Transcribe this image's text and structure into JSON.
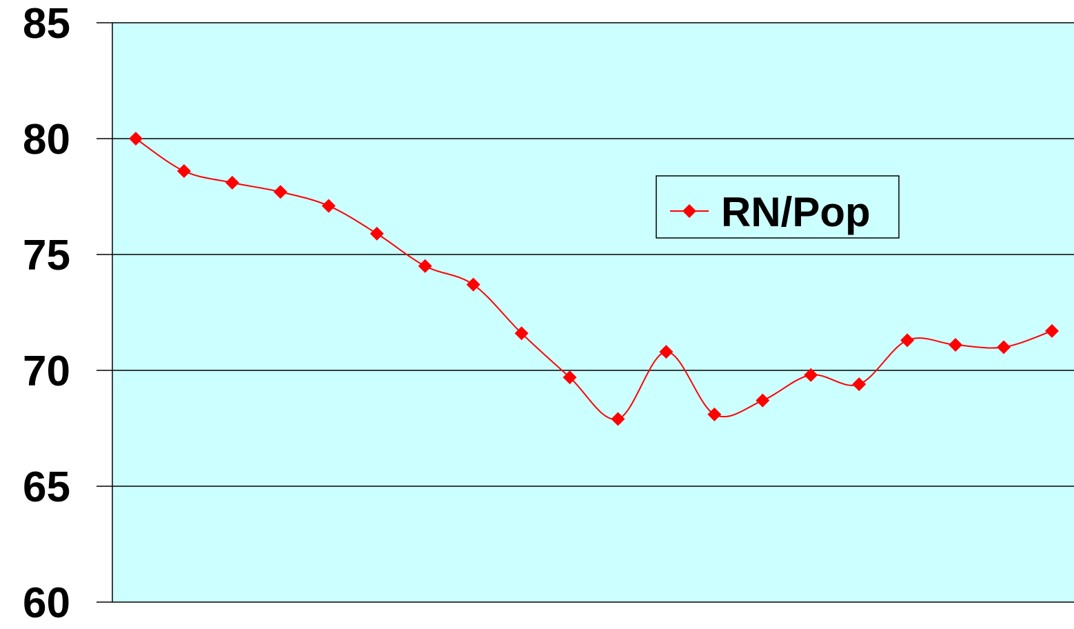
{
  "chart_data": {
    "type": "line",
    "title": "",
    "xlabel": "",
    "ylabel": "",
    "ylim": [
      60,
      85
    ],
    "y_ticks": [
      85,
      80,
      75,
      70,
      65,
      60
    ],
    "grid": "horizontal",
    "legend_position": "upper-right",
    "colors": {
      "plot_background": "#CCFFFF",
      "series": "#FF0000",
      "gridline": "#000000"
    },
    "series": [
      {
        "name": "RN/Pop",
        "marker": "diamond",
        "smooth": true,
        "values": [
          80.0,
          78.6,
          78.1,
          77.7,
          77.1,
          75.9,
          74.5,
          73.7,
          71.6,
          69.7,
          67.9,
          70.8,
          68.1,
          68.7,
          69.8,
          69.4,
          71.3,
          71.1,
          71.0,
          71.7
        ]
      }
    ]
  }
}
